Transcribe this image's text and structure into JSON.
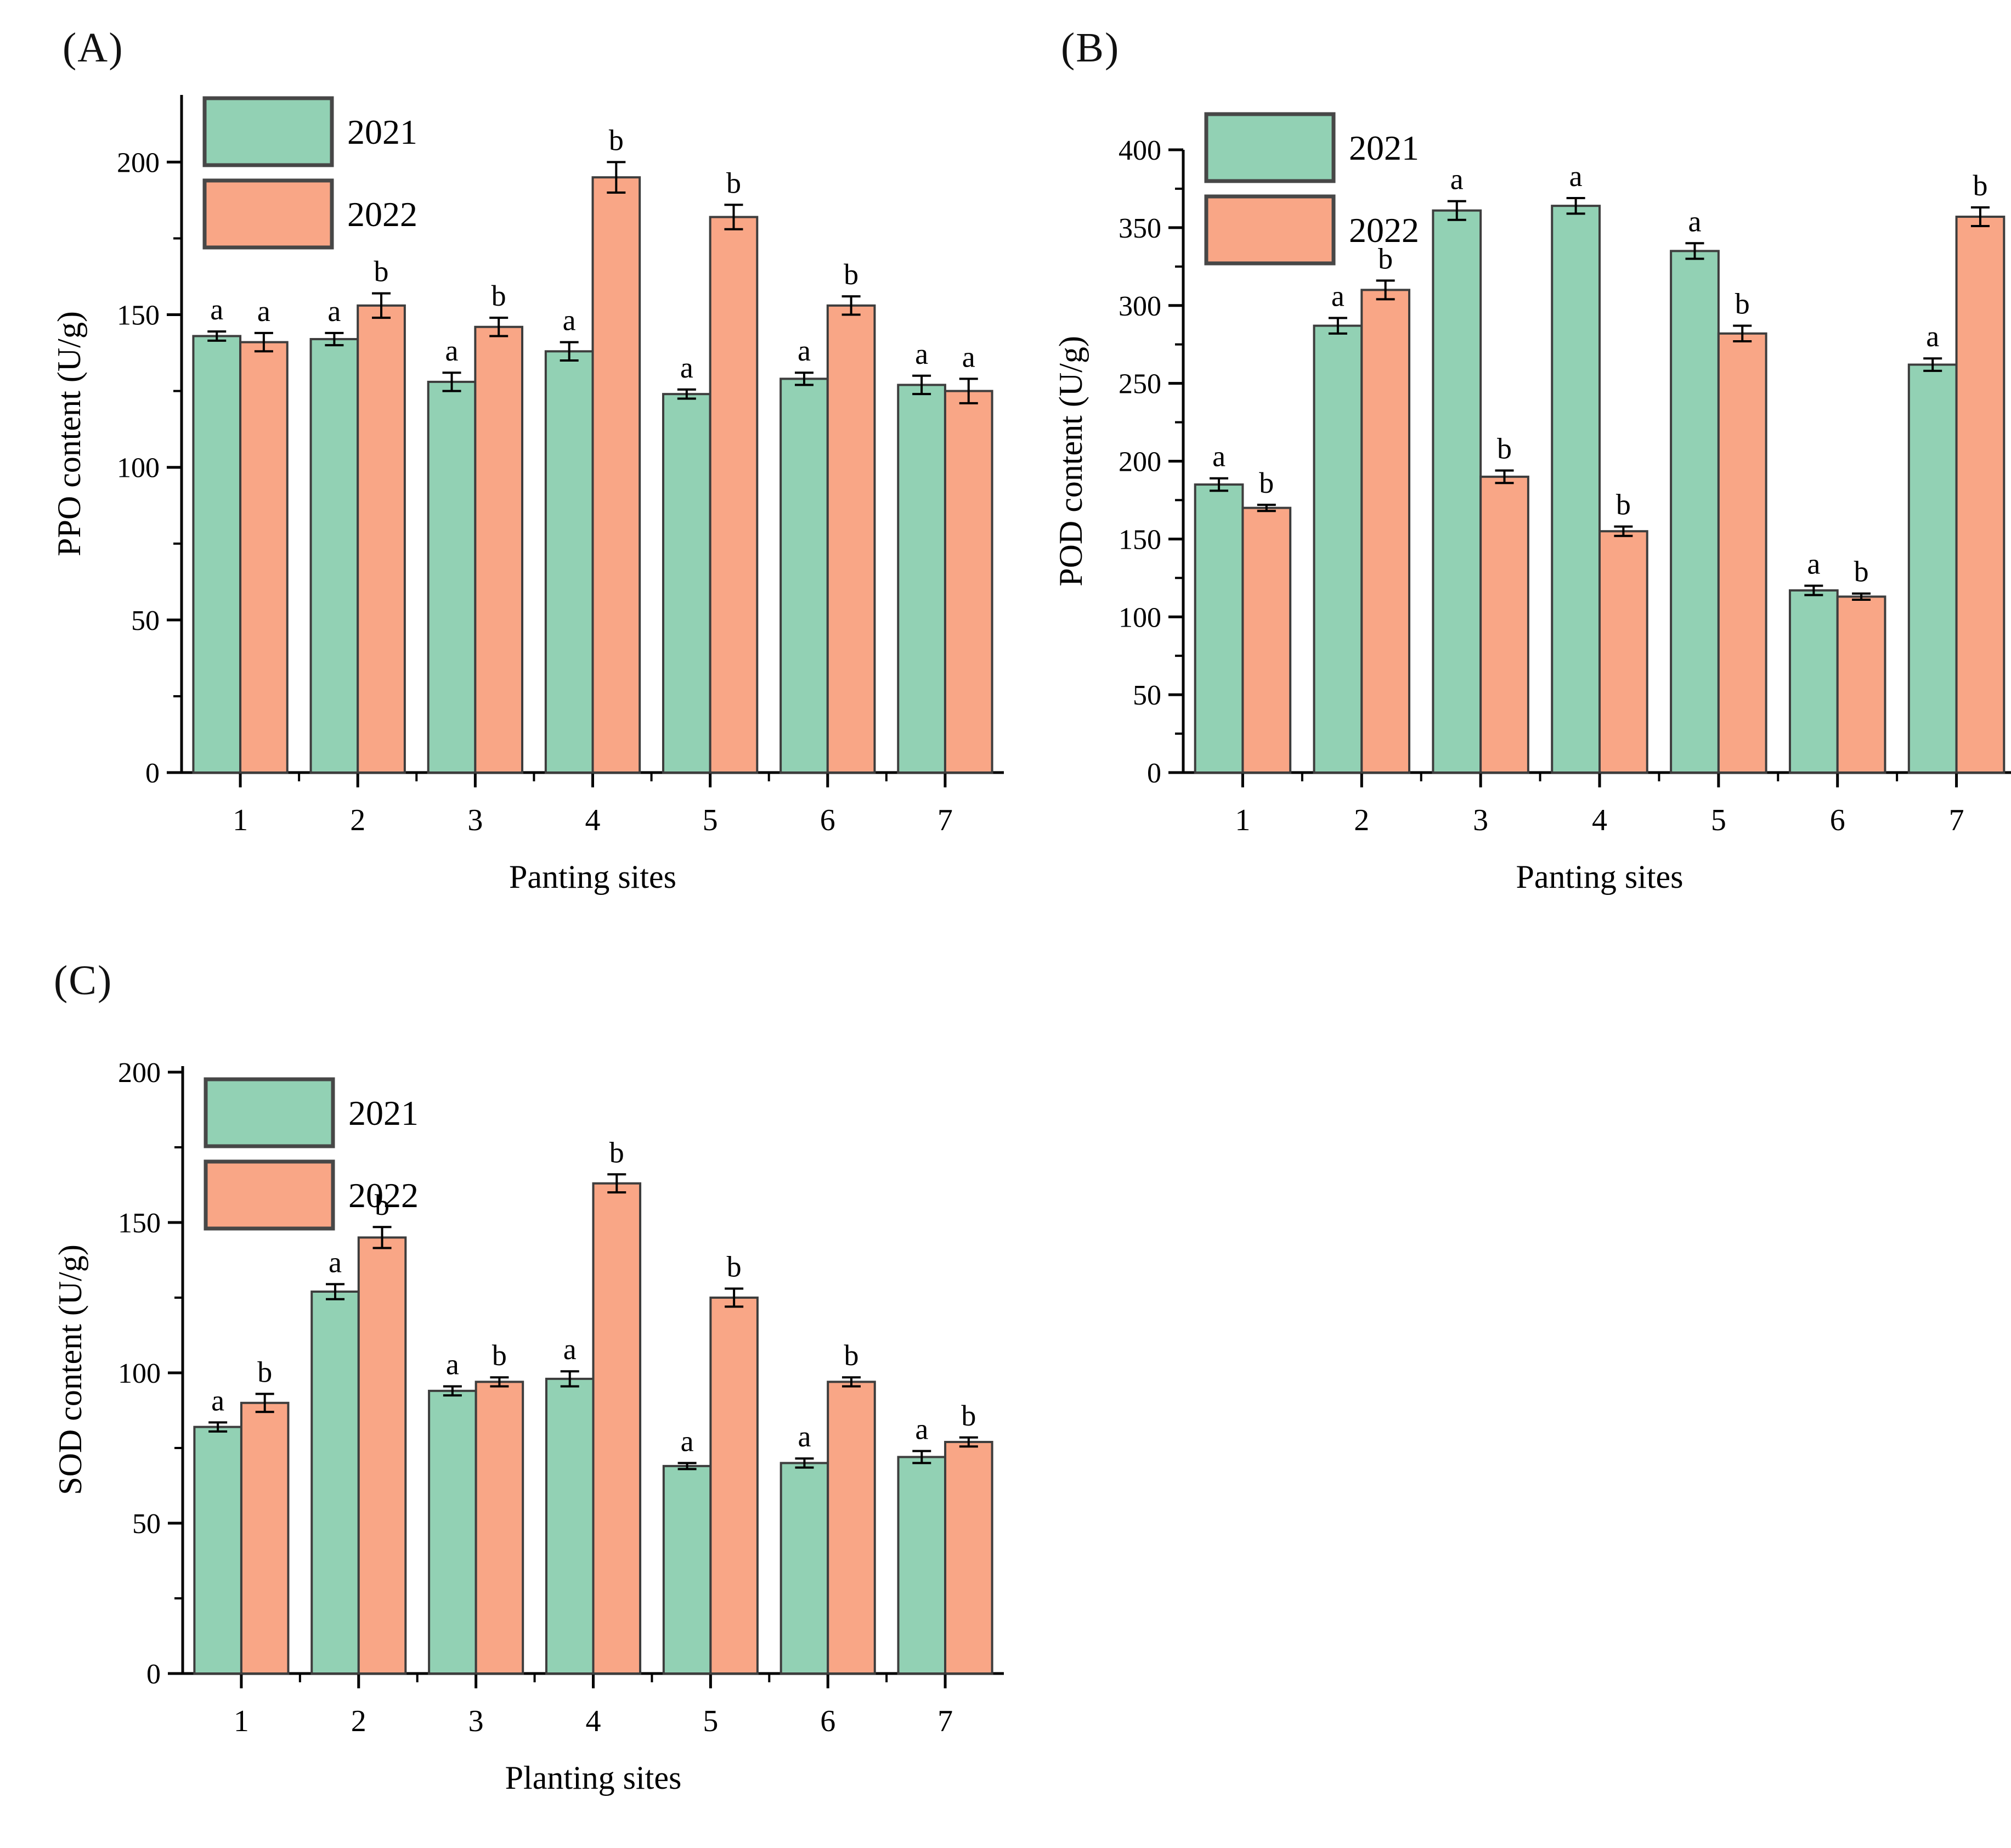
{
  "figure": {
    "description": "Three grouped bar charts of enzyme content (PPO, POD, SOD) at 7 planting sites in 2021 and 2022, with error bars and significance letters",
    "colors": {
      "series_2021": "#92d1b4",
      "series_2022": "#f9a686",
      "bar_border": "#3d3d3d",
      "axis": "#000000",
      "text": "#000000"
    }
  },
  "chart_data": [
    {
      "id": "A",
      "panel_label": "(A)",
      "type": "bar",
      "categories": [
        "1",
        "2",
        "3",
        "4",
        "5",
        "6",
        "7"
      ],
      "series": [
        {
          "name": "2021",
          "color": "#92d1b4",
          "values": [
            143,
            142,
            128,
            138,
            124,
            129,
            127
          ],
          "errors": [
            1.5,
            2,
            3,
            3,
            1.5,
            2,
            3
          ],
          "sig_letters": [
            "a",
            "a",
            "a",
            "a",
            "a",
            "a",
            "a"
          ]
        },
        {
          "name": "2022",
          "color": "#f9a686",
          "values": [
            141,
            153,
            146,
            195,
            182,
            153,
            125
          ],
          "errors": [
            3,
            4,
            3,
            5,
            4,
            3,
            4
          ],
          "sig_letters": [
            "a",
            "b",
            "b",
            "b",
            "b",
            "b",
            "a"
          ]
        }
      ],
      "xlabel": "Panting sites",
      "ylabel": "PPO content (U/g)",
      "ylim": [
        0,
        222
      ],
      "yticks": [
        0,
        50,
        100,
        150,
        200
      ],
      "minor_step": 25,
      "grid": false,
      "legend_position": "top-left"
    },
    {
      "id": "B",
      "panel_label": "(B)",
      "type": "bar",
      "categories": [
        "1",
        "2",
        "3",
        "4",
        "5",
        "6",
        "7"
      ],
      "series": [
        {
          "name": "2021",
          "color": "#92d1b4",
          "values": [
            185,
            287,
            361,
            364,
            335,
            117,
            262
          ],
          "errors": [
            4,
            5,
            6,
            5,
            5,
            3,
            4
          ],
          "sig_letters": [
            "a",
            "a",
            "a",
            "a",
            "a",
            "a",
            "a"
          ]
        },
        {
          "name": "2022",
          "color": "#f9a686",
          "values": [
            170,
            310,
            190,
            155,
            282,
            113,
            357
          ],
          "errors": [
            2,
            6,
            4,
            3,
            5,
            2,
            6
          ],
          "sig_letters": [
            "b",
            "b",
            "b",
            "b",
            "b",
            "b",
            "b"
          ]
        }
      ],
      "xlabel": "Panting sites",
      "ylabel": "POD content (U/g)",
      "ylim": [
        0,
        400
      ],
      "yticks": [
        0,
        50,
        100,
        150,
        200,
        250,
        300,
        350,
        400
      ],
      "minor_step": 25,
      "grid": false,
      "legend_position": "top-left"
    },
    {
      "id": "C",
      "panel_label": "(C)",
      "type": "bar",
      "categories": [
        "1",
        "2",
        "3",
        "4",
        "5",
        "6",
        "7"
      ],
      "series": [
        {
          "name": "2021",
          "color": "#92d1b4",
          "values": [
            82,
            127,
            94,
            98,
            69,
            70,
            72
          ],
          "errors": [
            1.5,
            2.5,
            1.5,
            2.5,
            1,
            1.5,
            2
          ],
          "sig_letters": [
            "a",
            "a",
            "a",
            "a",
            "a",
            "a",
            "a"
          ]
        },
        {
          "name": "2022",
          "color": "#f9a686",
          "values": [
            90,
            145,
            97,
            163,
            125,
            97,
            77
          ],
          "errors": [
            3,
            3.5,
            1.5,
            3,
            3,
            1.5,
            1.5
          ],
          "sig_letters": [
            "b",
            "b",
            "b",
            "b",
            "b",
            "b",
            "b"
          ]
        }
      ],
      "xlabel": "Planting sites",
      "ylabel": "SOD content (U/g)",
      "ylim": [
        0,
        202
      ],
      "yticks": [
        0,
        50,
        100,
        150,
        200
      ],
      "minor_step": 25,
      "grid": false,
      "legend_position": "top-left"
    }
  ]
}
